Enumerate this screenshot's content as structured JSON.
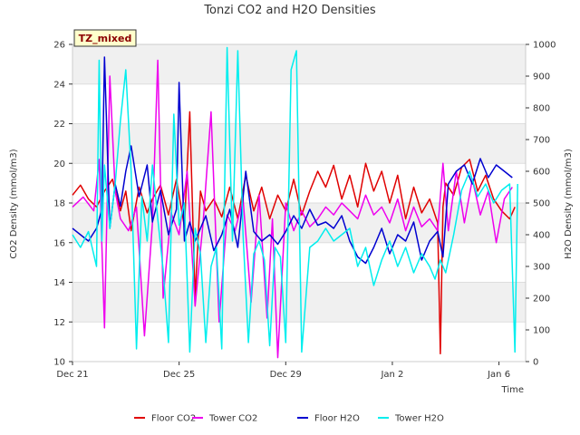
{
  "chart_data": {
    "type": "line",
    "title": "Tonzi CO2 and H2O Densities",
    "xlabel": "Time",
    "ylabel_left": "CO2 Density (mmol/m3)",
    "ylabel_right": "H2O Density (mmol/m3)",
    "x_range": [
      "Dec 21",
      "Jan 7"
    ],
    "y_left_range": [
      10,
      26
    ],
    "y_right_range": [
      0,
      1000
    ],
    "x_ticks": [
      "Dec 21",
      "Dec 25",
      "Dec 29",
      "Jan 2",
      "Jan 6"
    ],
    "y_left_ticks": [
      "10",
      "12",
      "14",
      "16",
      "18",
      "20",
      "22",
      "24",
      "26"
    ],
    "y_right_ticks": [
      "0",
      "100",
      "200",
      "300",
      "400",
      "500",
      "600",
      "700",
      "800",
      "900",
      "1000"
    ],
    "annotation": "TZ_mixed",
    "legend_position": "bottom",
    "background_bands": true,
    "series": [
      {
        "name": "Floor CO2",
        "axis": "left",
        "color": "#e00000",
        "x_days": [
          0,
          0.3,
          0.6,
          0.9,
          1.2,
          1.5,
          1.8,
          2.0,
          2.2,
          2.5,
          2.8,
          3.0,
          3.3,
          3.6,
          3.9,
          4.2,
          4.4,
          4.6,
          4.8,
          5.0,
          5.3,
          5.6,
          5.9,
          6.2,
          6.5,
          6.8,
          7.1,
          7.4,
          7.7,
          8.0,
          8.3,
          8.6,
          8.9,
          9.2,
          9.5,
          9.8,
          10.1,
          10.4,
          10.7,
          11.0,
          11.3,
          11.6,
          11.9,
          12.2,
          12.5,
          12.8,
          13.1,
          13.4,
          13.7,
          13.8,
          13.9,
          14.0,
          14.3,
          14.6,
          14.9,
          15.2,
          15.5,
          15.8,
          16.1,
          16.4,
          16.6
        ],
        "values": [
          18.4,
          18.9,
          18.2,
          17.8,
          18.6,
          19.2,
          17.6,
          18.6,
          16.6,
          18.8,
          17.5,
          18.2,
          18.9,
          17.4,
          19.2,
          16.8,
          22.6,
          13.2,
          18.6,
          17.6,
          18.2,
          17.3,
          18.8,
          17.2,
          19.4,
          17.6,
          18.8,
          17.2,
          18.4,
          17.6,
          19.2,
          17.4,
          18.6,
          19.6,
          18.8,
          19.9,
          18.2,
          19.4,
          17.8,
          20.0,
          18.6,
          19.6,
          18.0,
          19.4,
          17.2,
          18.8,
          17.5,
          18.2,
          17.0,
          10.4,
          17.8,
          19.0,
          18.4,
          19.8,
          20.2,
          18.6,
          19.4,
          18.2,
          17.6,
          17.2,
          17.8
        ]
      },
      {
        "name": "Tower CO2",
        "axis": "left",
        "color": "#ee00ee",
        "x_days": [
          0,
          0.4,
          0.8,
          1.0,
          1.2,
          1.4,
          1.6,
          1.8,
          2.1,
          2.4,
          2.7,
          3.0,
          3.2,
          3.4,
          3.7,
          4.0,
          4.3,
          4.6,
          4.9,
          5.2,
          5.5,
          5.8,
          6.1,
          6.4,
          6.7,
          7.0,
          7.3,
          7.5,
          7.7,
          8.0,
          8.3,
          8.6,
          8.9,
          9.2,
          9.5,
          9.8,
          10.1,
          10.4,
          10.7,
          11.0,
          11.3,
          11.6,
          11.9,
          12.2,
          12.5,
          12.8,
          13.1,
          13.4,
          13.7,
          13.9,
          14.1,
          14.4,
          14.7,
          15.0,
          15.3,
          15.6,
          15.9,
          16.2,
          16.5
        ],
        "values": [
          17.8,
          18.3,
          17.6,
          20.2,
          11.7,
          24.4,
          18.6,
          17.2,
          16.6,
          17.8,
          11.3,
          17.0,
          25.2,
          13.2,
          17.5,
          16.4,
          19.6,
          12.8,
          17.0,
          22.6,
          12.0,
          17.4,
          16.6,
          18.2,
          13.0,
          18.4,
          12.2,
          17.2,
          10.2,
          18.0,
          16.6,
          17.6,
          16.8,
          17.2,
          17.8,
          17.4,
          18.0,
          17.6,
          17.2,
          18.4,
          17.4,
          17.8,
          17.0,
          18.2,
          16.6,
          17.8,
          16.8,
          17.2,
          16.6,
          20.0,
          16.6,
          19.6,
          17.0,
          19.2,
          17.4,
          18.6,
          16.0,
          18.2,
          18.8
        ]
      },
      {
        "name": "Floor H2O",
        "axis": "right",
        "color": "#0000d0",
        "x_days": [
          0,
          0.3,
          0.6,
          0.9,
          1.1,
          1.2,
          1.4,
          1.6,
          1.8,
          2.0,
          2.2,
          2.5,
          2.8,
          3.0,
          3.3,
          3.6,
          3.9,
          4.0,
          4.2,
          4.4,
          4.6,
          4.8,
          5.0,
          5.3,
          5.6,
          5.9,
          6.2,
          6.5,
          6.8,
          7.1,
          7.4,
          7.7,
          8.0,
          8.3,
          8.6,
          8.9,
          9.2,
          9.5,
          9.8,
          10.1,
          10.4,
          10.7,
          11.0,
          11.3,
          11.6,
          11.9,
          12.2,
          12.5,
          12.8,
          13.1,
          13.4,
          13.7,
          13.9,
          14.1,
          14.4,
          14.7,
          15.0,
          15.3,
          15.6,
          15.9,
          16.2,
          16.5
        ],
        "values": [
          420,
          400,
          380,
          420,
          480,
          960,
          420,
          560,
          490,
          600,
          680,
          520,
          620,
          440,
          540,
          400,
          480,
          880,
          380,
          440,
          380,
          420,
          460,
          350,
          400,
          480,
          360,
          600,
          410,
          380,
          400,
          370,
          410,
          460,
          420,
          480,
          430,
          440,
          420,
          460,
          380,
          330,
          310,
          360,
          420,
          340,
          400,
          380,
          440,
          320,
          380,
          410,
          330,
          560,
          600,
          620,
          560,
          640,
          580,
          620,
          600,
          580
        ]
      },
      {
        "name": "Tower H2O",
        "axis": "right",
        "color": "#00eeee",
        "x_days": [
          0,
          0.3,
          0.6,
          0.9,
          1.0,
          1.1,
          1.2,
          1.4,
          1.6,
          1.8,
          2.0,
          2.2,
          2.4,
          2.6,
          2.8,
          3.0,
          3.2,
          3.4,
          3.6,
          3.8,
          4.0,
          4.2,
          4.4,
          4.6,
          4.8,
          5.0,
          5.2,
          5.4,
          5.6,
          5.8,
          6.0,
          6.2,
          6.4,
          6.6,
          6.8,
          7.0,
          7.2,
          7.4,
          7.6,
          7.8,
          8.0,
          8.2,
          8.4,
          8.6,
          8.9,
          9.2,
          9.5,
          9.8,
          10.1,
          10.4,
          10.7,
          11.0,
          11.3,
          11.6,
          11.9,
          12.2,
          12.5,
          12.8,
          13.1,
          13.4,
          13.6,
          13.8,
          14.0,
          14.3,
          14.6,
          14.9,
          15.2,
          15.5,
          15.8,
          16.1,
          16.4,
          16.6,
          16.7
        ],
        "values": [
          400,
          360,
          410,
          300,
          950,
          380,
          620,
          420,
          560,
          760,
          920,
          600,
          40,
          520,
          380,
          620,
          450,
          290,
          60,
          780,
          430,
          500,
          30,
          420,
          340,
          60,
          300,
          360,
          40,
          990,
          380,
          980,
          400,
          60,
          340,
          380,
          320,
          50,
          360,
          330,
          60,
          920,
          980,
          30,
          360,
          380,
          420,
          380,
          400,
          420,
          300,
          360,
          240,
          320,
          380,
          300,
          360,
          280,
          340,
          300,
          260,
          320,
          280,
          400,
          540,
          600,
          520,
          560,
          500,
          540,
          560,
          30,
          560
        ]
      }
    ]
  }
}
